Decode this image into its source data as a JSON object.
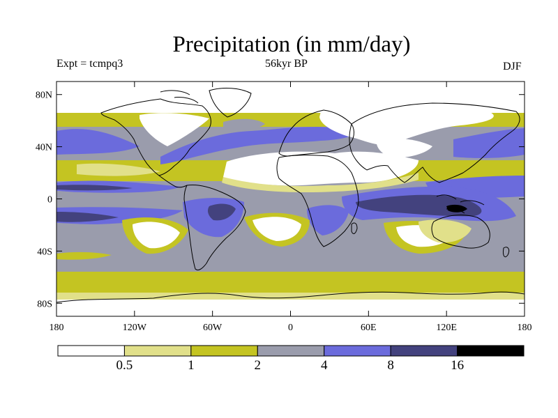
{
  "title": "Precipitation (in mm/day)",
  "experiment": "Expt = tcmpq3",
  "period": "56kyr BP",
  "season": "DJF",
  "lat_ticks": [
    {
      "value": 80,
      "label": "80N"
    },
    {
      "value": 40,
      "label": "40N"
    },
    {
      "value": 0,
      "label": "0"
    },
    {
      "value": -40,
      "label": "40S"
    },
    {
      "value": -80,
      "label": "80S"
    }
  ],
  "lon_ticks": [
    {
      "value": -180,
      "label": "180"
    },
    {
      "value": -120,
      "label": "120W"
    },
    {
      "value": -60,
      "label": "60W"
    },
    {
      "value": 0,
      "label": "0"
    },
    {
      "value": 60,
      "label": "60E"
    },
    {
      "value": 120,
      "label": "120E"
    },
    {
      "value": 180,
      "label": "180"
    }
  ],
  "colorbar": {
    "colors": [
      "#ffffff",
      "#e1e08a",
      "#c4c422",
      "#9a9cac",
      "#6b6bdc",
      "#43427e",
      "#000000"
    ],
    "labels": [
      "0.5",
      "1",
      "2",
      "4",
      "8",
      "16"
    ]
  },
  "colors": {
    "dry": "#ffffff",
    "level_0_5": "#e1e08a",
    "level_1": "#c4c422",
    "level_2": "#9a9cac",
    "level_4": "#6b6bdc",
    "level_8": "#43427e",
    "level_16": "#000000",
    "coastline": "#000000"
  }
}
